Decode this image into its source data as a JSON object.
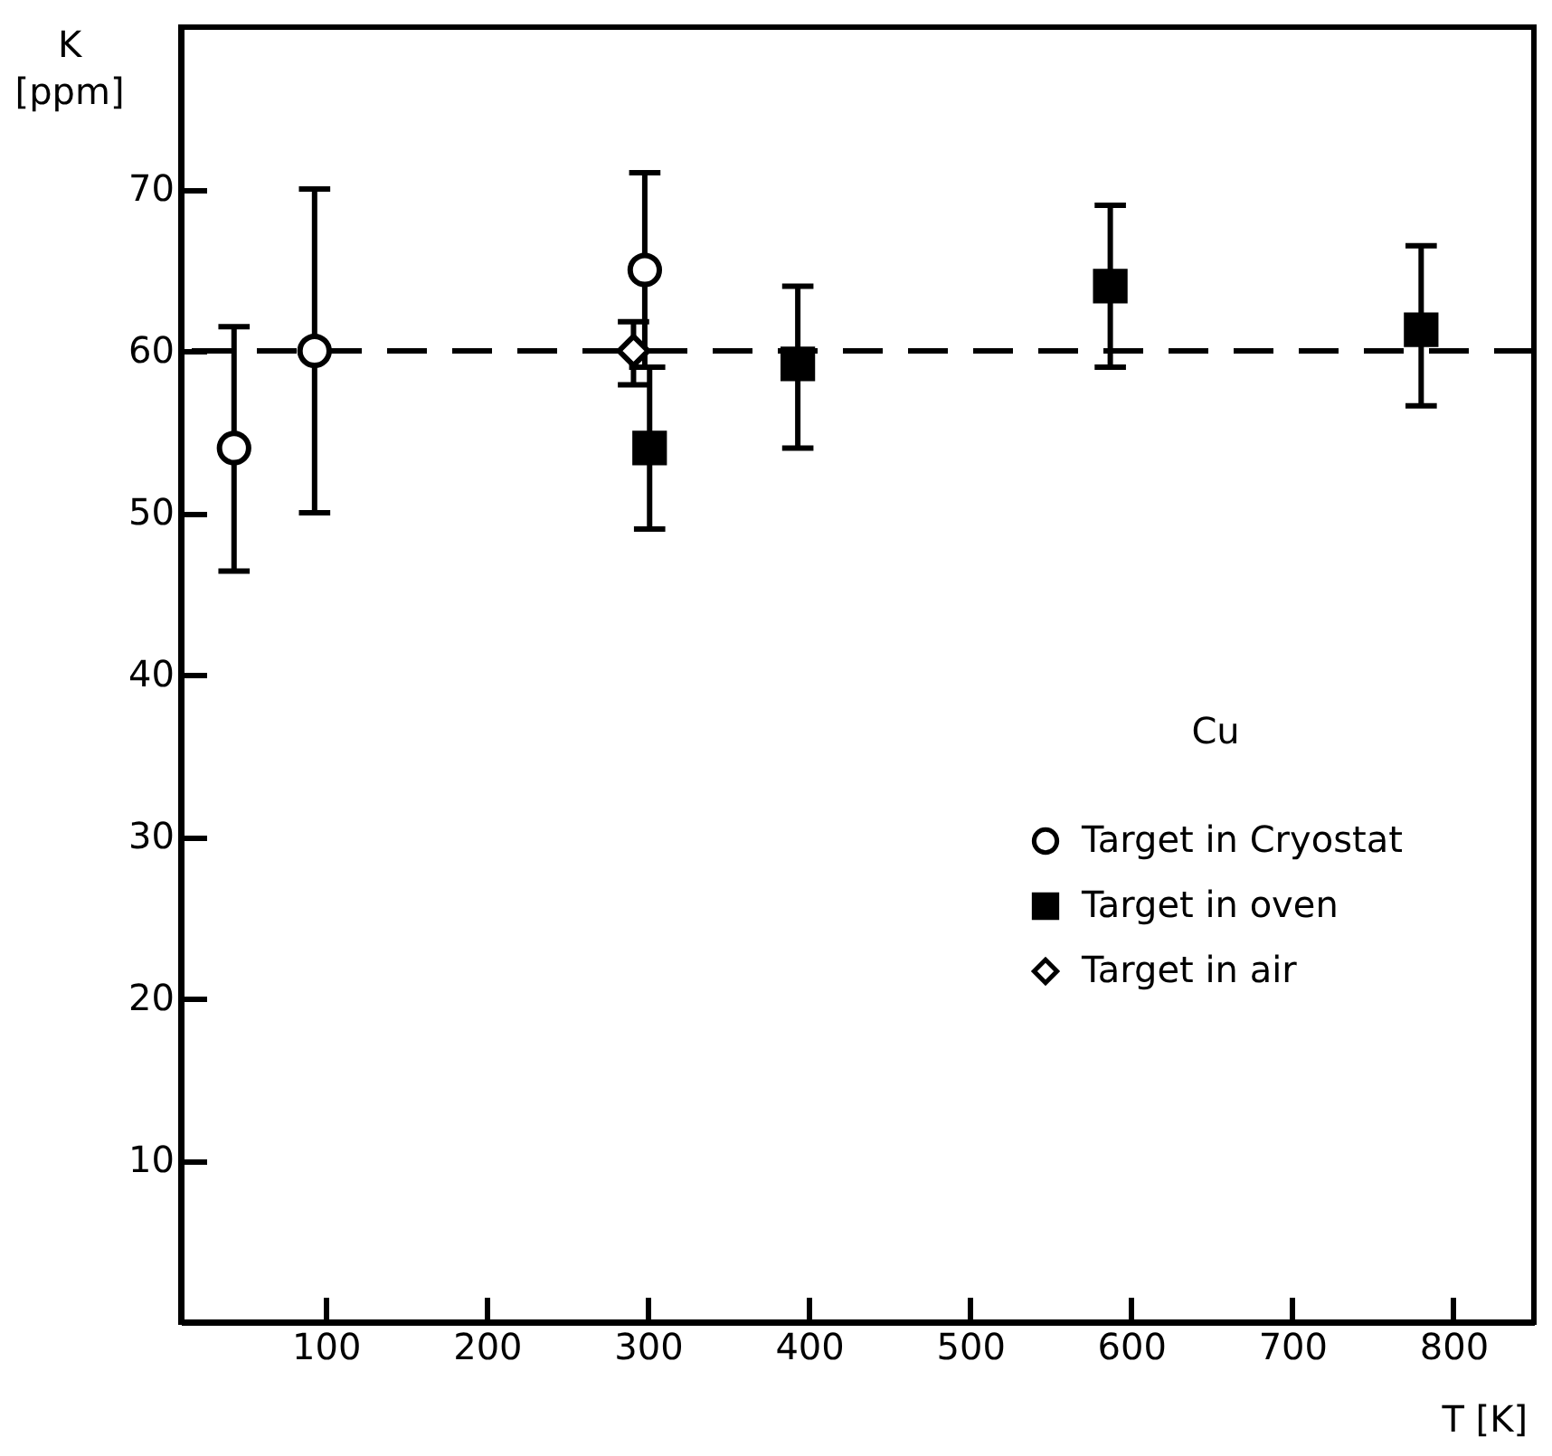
{
  "chart_data": {
    "type": "scatter",
    "xlabel": "T [K]",
    "ylabel": "K [ppm]",
    "legend_title": "Cu",
    "xlim": [
      10,
      850
    ],
    "xticks": [
      100,
      200,
      300,
      400,
      500,
      600,
      700,
      800
    ],
    "ylim": [
      0,
      80
    ],
    "yticks": [
      10,
      20,
      30,
      40,
      50,
      60,
      70
    ],
    "grid": false,
    "legend": "right",
    "ref_lines": [
      {
        "axis": "y",
        "value": 60,
        "line_style": "dashed",
        "color": "#000000"
      }
    ],
    "series": [
      {
        "name": "Target in Cryostat",
        "color": "#000000",
        "marker": "circle",
        "x": [
          43,
          93,
          298
        ],
        "values": [
          54,
          60,
          65
        ],
        "errors": [
          [
            46.4,
            61.5
          ],
          [
            50,
            70
          ],
          [
            59,
            71
          ]
        ]
      },
      {
        "name": "Target in oven",
        "color": "#000000",
        "marker": "square",
        "x": [
          301,
          393,
          587,
          780
        ],
        "values": [
          54,
          59.2,
          64,
          61.3
        ],
        "errors": [
          [
            49,
            59
          ],
          [
            54,
            64
          ],
          [
            59,
            69
          ],
          [
            56.6,
            66.5
          ]
        ]
      },
      {
        "name": "Target in air",
        "color": "#000000",
        "marker": "diamond",
        "x": [
          291
        ],
        "values": [
          60
        ],
        "errors": [
          [
            57.9,
            61.8
          ]
        ]
      }
    ]
  }
}
